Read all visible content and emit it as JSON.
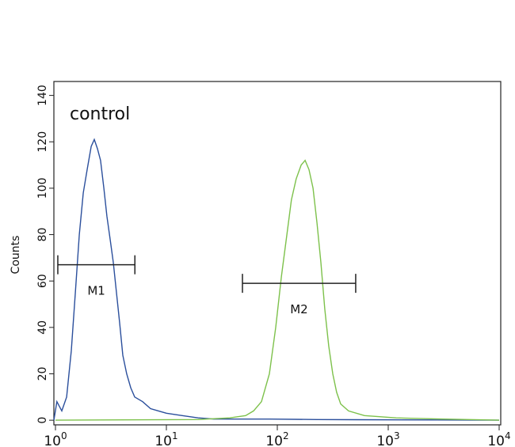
{
  "chart_data": {
    "type": "histogram-line",
    "annotation": "control",
    "ylabel": "Counts",
    "xscale": "log",
    "xlim": [
      1,
      10000
    ],
    "ylim": [
      -2,
      146
    ],
    "xticks": [
      {
        "value": 1,
        "label": "10",
        "sup": "0"
      },
      {
        "value": 10,
        "label": "10",
        "sup": "1"
      },
      {
        "value": 100,
        "label": "10",
        "sup": "2"
      },
      {
        "value": 1000,
        "label": "10",
        "sup": "3"
      },
      {
        "value": 10000,
        "label": "10",
        "sup": "4"
      }
    ],
    "yticks": [
      0,
      20,
      40,
      60,
      80,
      100,
      120,
      140
    ],
    "series": [
      {
        "color": "#2b4f9c",
        "x": [
          0.968,
          1.03,
          1.14,
          1.26,
          1.39,
          1.51,
          1.64,
          1.78,
          1.93,
          2.1,
          2.24,
          2.39,
          2.55,
          2.73,
          2.91,
          3.11,
          3.32,
          3.55,
          3.79,
          4.05,
          4.39,
          4.77,
          5.18,
          6.11,
          7.2,
          8.48,
          10,
          13.9,
          19.3,
          26.8,
          44,
          84.9,
          228,
          518,
          10000
        ],
        "values": [
          0,
          8,
          4,
          10,
          30,
          55,
          80,
          98,
          108,
          118,
          121,
          117,
          112,
          100,
          88,
          78,
          68,
          55,
          42,
          28,
          20,
          14,
          10,
          8,
          5,
          4,
          3,
          2,
          1,
          0.5,
          0.5,
          0.5,
          0.3,
          0.2,
          0
        ]
      },
      {
        "color": "#7dc14b",
        "x": [
          1,
          19.3,
          37.3,
          51.8,
          61.1,
          72.0,
          84.9,
          96.8,
          109,
          122,
          134,
          148,
          164,
          178,
          193,
          210,
          228,
          247,
          268,
          291,
          316,
          343,
          373,
          439,
          611,
          1179,
          3162,
          10000
        ],
        "values": [
          0,
          0.3,
          1,
          2,
          4,
          8,
          20,
          40,
          62,
          80,
          95,
          104,
          110,
          112,
          108,
          100,
          85,
          68,
          48,
          32,
          20,
          12,
          7,
          4,
          2,
          1,
          0.5,
          0
        ]
      }
    ],
    "markers": [
      {
        "label": "M1",
        "x": [
          1.05,
          5.2
        ],
        "y": 67
      },
      {
        "label": "M2",
        "x": [
          48.5,
          509
        ],
        "y": 59
      }
    ]
  }
}
